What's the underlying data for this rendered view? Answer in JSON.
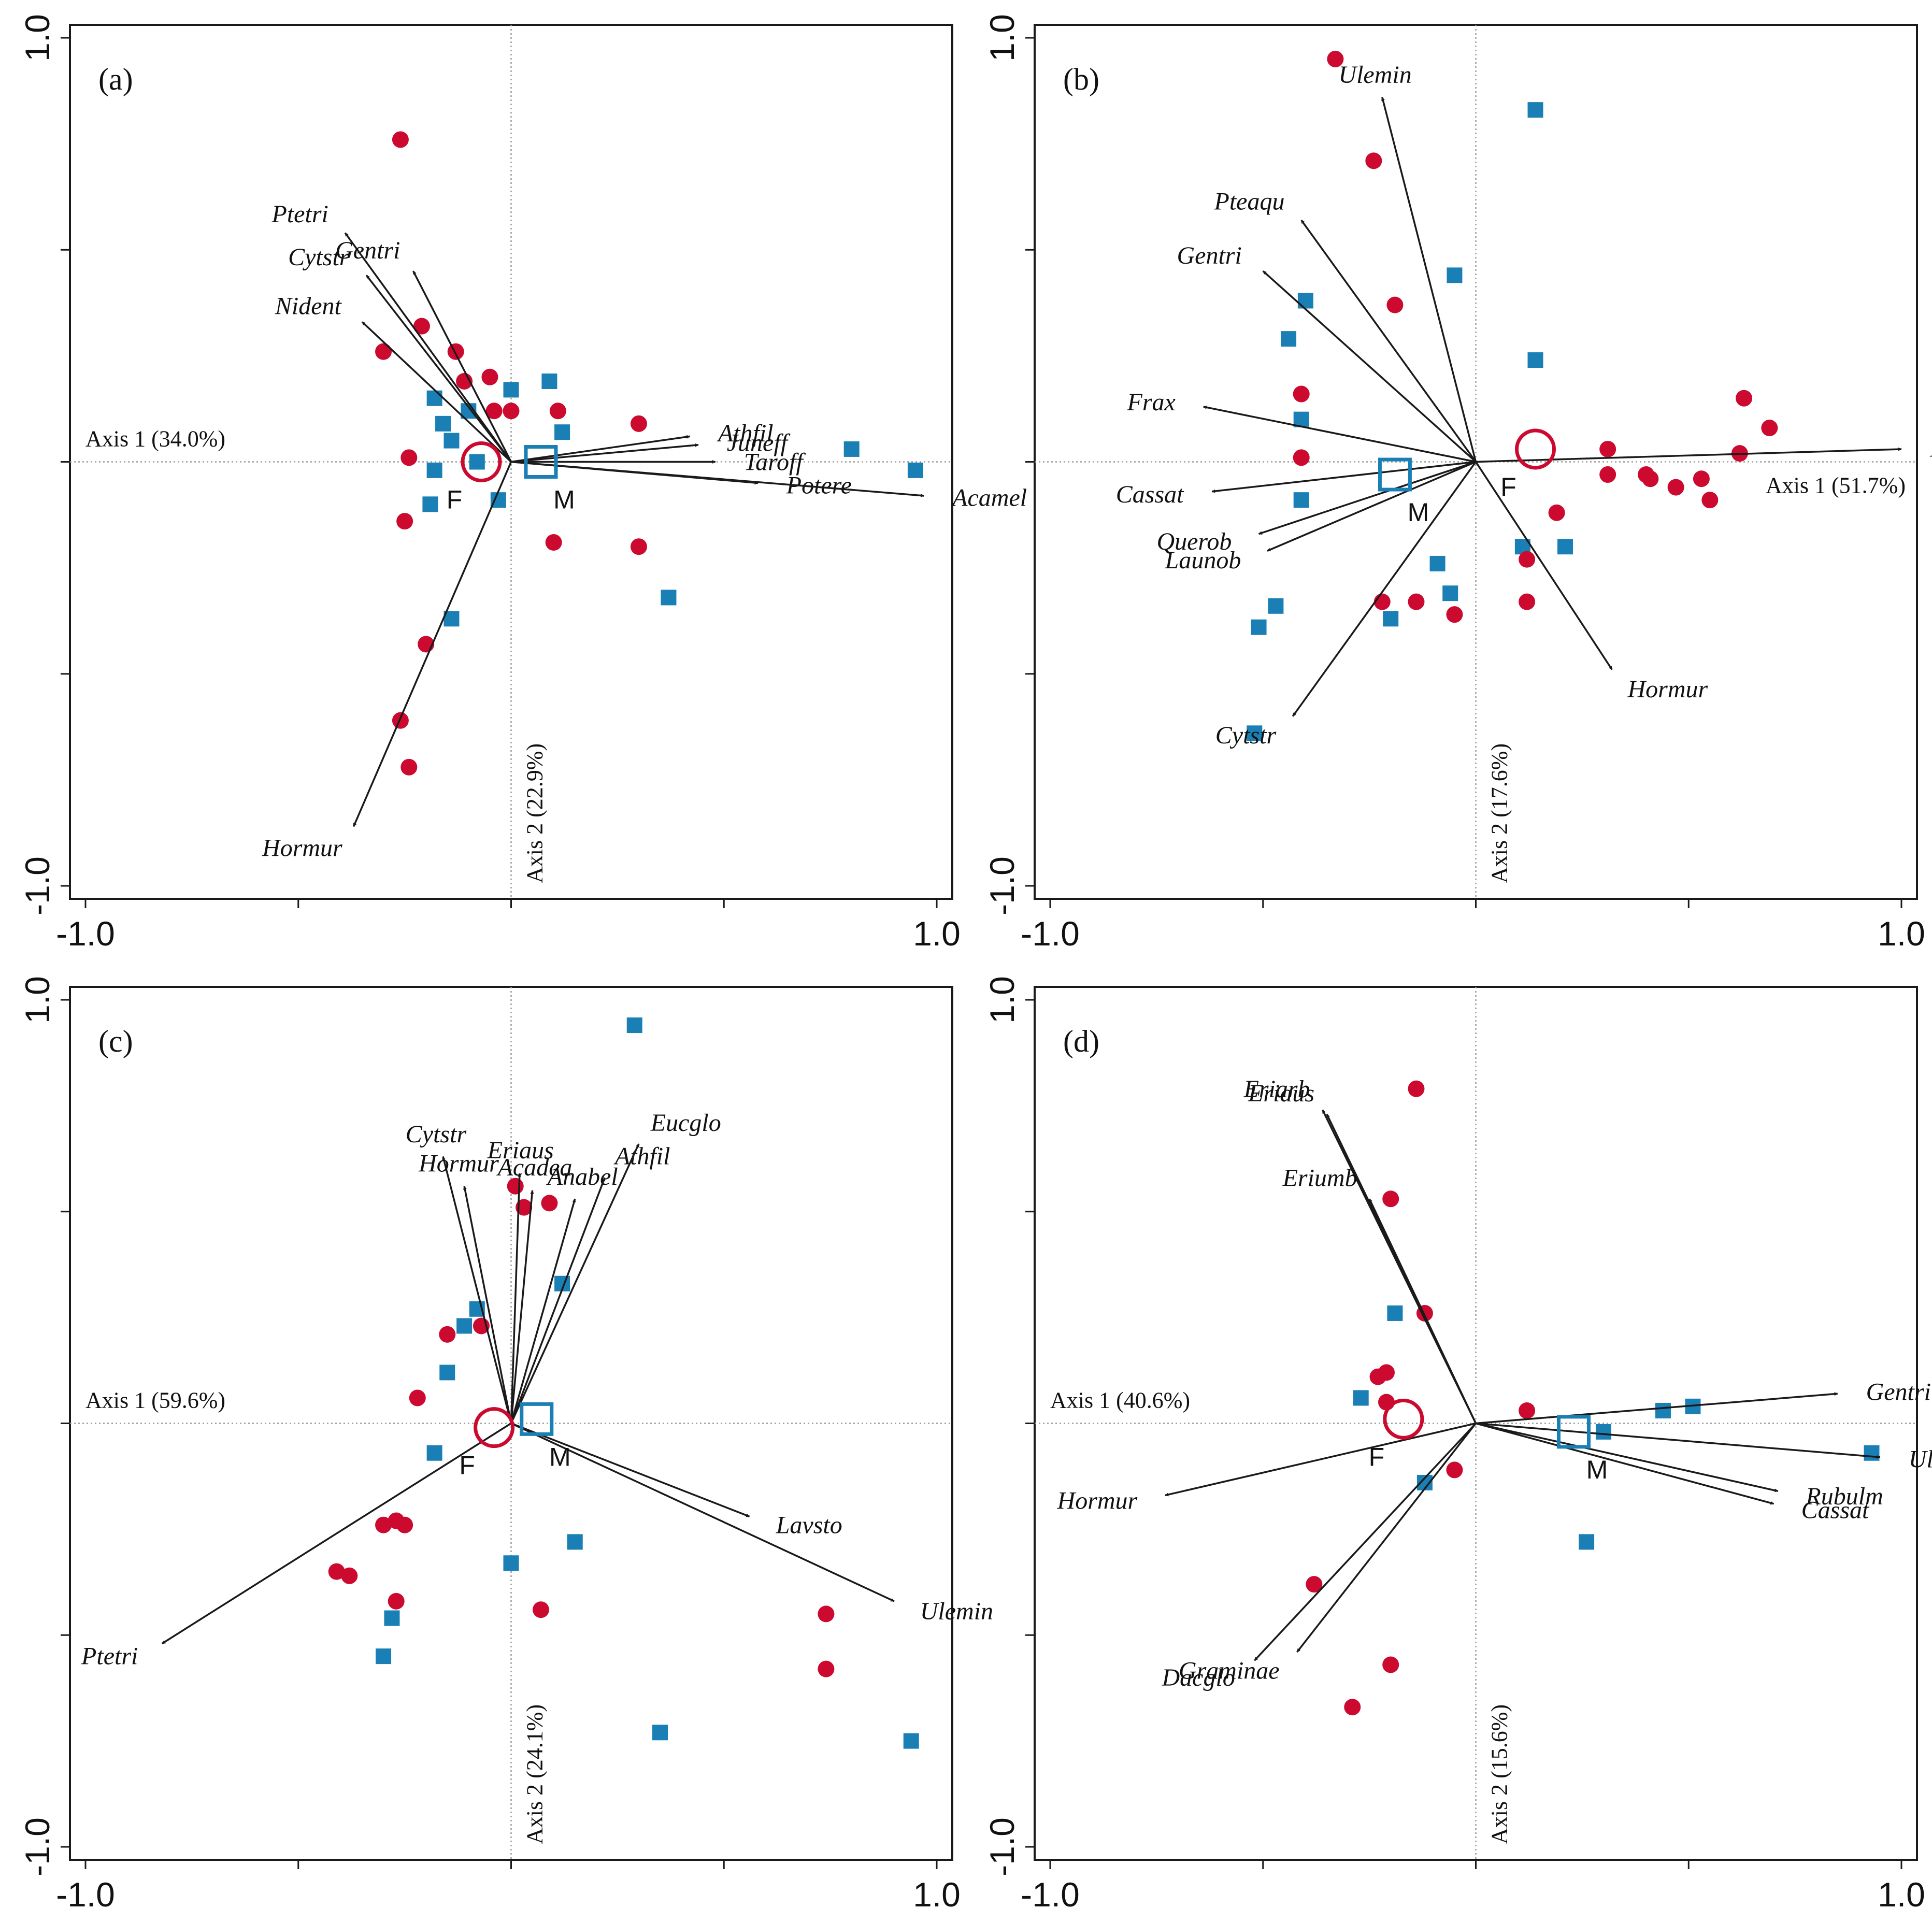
{
  "colors": {
    "female": "#cc0a2f",
    "male": "#1a7fb5",
    "arrow": "#1a1a1a",
    "frame": "#1a1a1a",
    "guide": "#9a9a9a"
  },
  "icons": {
    "female_site": "red-filled-circle",
    "male_site": "blue-filled-square",
    "female_centroid": "red-open-circle",
    "male_centroid": "blue-open-square"
  },
  "chart_data": [
    {
      "type": "scatter",
      "panel_label": "(a)",
      "xlim": [
        -1.0,
        1.0
      ],
      "ylim": [
        -1.0,
        1.0
      ],
      "x_tick_labels": [
        "-1.0",
        "1.0"
      ],
      "y_tick_labels": [
        "-1.0",
        "1.0"
      ],
      "axis1_label": "Axis 1 (34.0%)",
      "axis2_label": "Axis 2 (22.9%)",
      "vectors": [
        {
          "name": "Ptetri",
          "x": -0.39,
          "y": 0.54
        },
        {
          "name": "Gentri",
          "x": -0.23,
          "y": 0.45
        },
        {
          "name": "Cytstr",
          "x": -0.34,
          "y": 0.44
        },
        {
          "name": "Nident",
          "x": -0.35,
          "y": 0.33
        },
        {
          "name": "Athfil",
          "x": 0.42,
          "y": 0.06
        },
        {
          "name": "Juneff",
          "x": 0.44,
          "y": 0.04
        },
        {
          "name": "Taroff",
          "x": 0.48,
          "y": 0.0
        },
        {
          "name": "Potere",
          "x": 0.58,
          "y": -0.05
        },
        {
          "name": "Acamel",
          "x": 0.97,
          "y": -0.08
        },
        {
          "name": "Hormur",
          "x": -0.37,
          "y": -0.86
        }
      ],
      "centroids": [
        {
          "name": "F",
          "group": "female",
          "x": -0.07,
          "y": 0.0
        },
        {
          "name": "M",
          "group": "male",
          "x": 0.07,
          "y": 0.0
        }
      ],
      "female_points": [
        [
          -0.26,
          0.76
        ],
        [
          -0.21,
          0.32
        ],
        [
          -0.3,
          0.26
        ],
        [
          -0.13,
          0.26
        ],
        [
          -0.11,
          0.19
        ],
        [
          -0.05,
          0.2
        ],
        [
          -0.04,
          0.12
        ],
        [
          0.0,
          0.12
        ],
        [
          0.11,
          0.12
        ],
        [
          -0.24,
          0.01
        ],
        [
          -0.25,
          -0.14
        ],
        [
          0.1,
          -0.19
        ],
        [
          0.3,
          0.09
        ],
        [
          0.3,
          -0.2
        ],
        [
          -0.2,
          -0.43
        ],
        [
          -0.26,
          -0.61
        ],
        [
          -0.24,
          -0.72
        ]
      ],
      "male_points": [
        [
          -0.18,
          0.15
        ],
        [
          -0.16,
          0.09
        ],
        [
          -0.14,
          0.05
        ],
        [
          -0.1,
          0.12
        ],
        [
          -0.08,
          0.0
        ],
        [
          -0.18,
          -0.02
        ],
        [
          -0.19,
          -0.1
        ],
        [
          -0.03,
          -0.09
        ],
        [
          0.0,
          0.17
        ],
        [
          0.09,
          0.19
        ],
        [
          0.12,
          0.07
        ],
        [
          0.37,
          -0.32
        ],
        [
          -0.14,
          -0.37
        ],
        [
          0.8,
          0.03
        ],
        [
          0.95,
          -0.02
        ]
      ]
    },
    {
      "type": "scatter",
      "panel_label": "(b)",
      "xlim": [
        -1.0,
        1.0
      ],
      "ylim": [
        -1.0,
        1.0
      ],
      "x_tick_labels": [
        "-1.0",
        "1.0"
      ],
      "y_tick_labels": [
        "-1.0",
        "1.0"
      ],
      "axis1_label": "Axis 1 (51.7%)",
      "axis2_label": "Axis 2 (17.6%)",
      "vectors": [
        {
          "name": "Ulemin",
          "x": -0.22,
          "y": 0.86
        },
        {
          "name": "Pteaqu",
          "x": -0.41,
          "y": 0.57
        },
        {
          "name": "Gentri",
          "x": -0.5,
          "y": 0.45
        },
        {
          "name": "Frax",
          "x": -0.64,
          "y": 0.13
        },
        {
          "name": "Cassat",
          "x": -0.62,
          "y": -0.07
        },
        {
          "name": "Querob",
          "x": -0.51,
          "y": -0.17
        },
        {
          "name": "Launob",
          "x": -0.49,
          "y": -0.21
        },
        {
          "name": "Ptetri",
          "x": 1.0,
          "y": 0.03
        },
        {
          "name": "Hormur",
          "x": 0.32,
          "y": -0.49
        },
        {
          "name": "Cytstr",
          "x": -0.43,
          "y": -0.6
        }
      ],
      "centroids": [
        {
          "name": "F",
          "group": "female",
          "x": 0.14,
          "y": 0.03
        },
        {
          "name": "M",
          "group": "male",
          "x": -0.19,
          "y": -0.03
        }
      ],
      "female_points": [
        [
          -0.33,
          0.95
        ],
        [
          -0.24,
          0.71
        ],
        [
          -0.19,
          0.37
        ],
        [
          -0.41,
          0.16
        ],
        [
          -0.41,
          0.01
        ],
        [
          0.63,
          0.15
        ],
        [
          0.69,
          0.08
        ],
        [
          0.62,
          0.02
        ],
        [
          0.31,
          0.03
        ],
        [
          0.31,
          -0.03
        ],
        [
          0.4,
          -0.03
        ],
        [
          0.41,
          -0.04
        ],
        [
          0.47,
          -0.06
        ],
        [
          0.53,
          -0.04
        ],
        [
          0.55,
          -0.09
        ],
        [
          0.19,
          -0.12
        ],
        [
          0.12,
          -0.23
        ],
        [
          0.12,
          -0.33
        ],
        [
          -0.22,
          -0.33
        ],
        [
          -0.14,
          -0.33
        ],
        [
          -0.05,
          -0.36
        ]
      ],
      "male_points": [
        [
          0.14,
          0.83
        ],
        [
          -0.05,
          0.44
        ],
        [
          -0.4,
          0.38
        ],
        [
          -0.44,
          0.29
        ],
        [
          0.14,
          0.24
        ],
        [
          -0.41,
          0.1
        ],
        [
          -0.41,
          -0.09
        ],
        [
          0.11,
          -0.2
        ],
        [
          0.21,
          -0.2
        ],
        [
          -0.09,
          -0.24
        ],
        [
          -0.06,
          -0.31
        ],
        [
          -0.47,
          -0.34
        ],
        [
          -0.51,
          -0.39
        ],
        [
          -0.2,
          -0.37
        ],
        [
          -0.52,
          -0.64
        ]
      ]
    },
    {
      "type": "scatter",
      "panel_label": "(c)",
      "xlim": [
        -1.0,
        1.0
      ],
      "ylim": [
        -1.0,
        1.0
      ],
      "x_tick_labels": [
        "-1.0",
        "1.0"
      ],
      "y_tick_labels": [
        "-1.0",
        "1.0"
      ],
      "axis1_label": "Axis 1 (59.6%)",
      "axis2_label": "Axis 2 (24.1%)",
      "vectors": [
        {
          "name": "Cytstr",
          "x": -0.16,
          "y": 0.63
        },
        {
          "name": "Hormur",
          "x": -0.11,
          "y": 0.56
        },
        {
          "name": "Eriaus",
          "x": 0.02,
          "y": 0.59
        },
        {
          "name": "Acadea",
          "x": 0.05,
          "y": 0.55
        },
        {
          "name": "Anabel",
          "x": 0.15,
          "y": 0.53
        },
        {
          "name": "Athfil",
          "x": 0.22,
          "y": 0.58
        },
        {
          "name": "Eucglo",
          "x": 0.3,
          "y": 0.66
        },
        {
          "name": "Lavsto",
          "x": 0.56,
          "y": -0.22
        },
        {
          "name": "Ulemin",
          "x": 0.9,
          "y": -0.42
        },
        {
          "name": "Ptetri",
          "x": -0.82,
          "y": -0.52
        }
      ],
      "centroids": [
        {
          "name": "F",
          "group": "female",
          "x": -0.04,
          "y": -0.01
        },
        {
          "name": "M",
          "group": "male",
          "x": 0.06,
          "y": 0.01
        }
      ],
      "female_points": [
        [
          0.01,
          0.56
        ],
        [
          0.03,
          0.51
        ],
        [
          0.09,
          0.52
        ],
        [
          -0.07,
          0.23
        ],
        [
          -0.15,
          0.21
        ],
        [
          -0.22,
          0.06
        ],
        [
          -0.3,
          -0.24
        ],
        [
          -0.27,
          -0.23
        ],
        [
          -0.25,
          -0.24
        ],
        [
          -0.41,
          -0.35
        ],
        [
          -0.38,
          -0.36
        ],
        [
          -0.27,
          -0.42
        ],
        [
          0.07,
          -0.44
        ],
        [
          0.74,
          -0.45
        ],
        [
          0.74,
          -0.58
        ]
      ],
      "male_points": [
        [
          0.29,
          0.94
        ],
        [
          0.12,
          0.33
        ],
        [
          -0.08,
          0.27
        ],
        [
          -0.11,
          0.23
        ],
        [
          -0.15,
          0.12
        ],
        [
          -0.18,
          -0.07
        ],
        [
          0.0,
          -0.33
        ],
        [
          0.15,
          -0.28
        ],
        [
          -0.28,
          -0.46
        ],
        [
          -0.3,
          -0.55
        ],
        [
          0.35,
          -0.73
        ],
        [
          0.94,
          -0.75
        ]
      ]
    },
    {
      "type": "scatter",
      "panel_label": "(d)",
      "xlim": [
        -1.0,
        1.0
      ],
      "ylim": [
        -1.0,
        1.0
      ],
      "x_tick_labels": [
        "-1.0",
        "1.0"
      ],
      "y_tick_labels": [
        "-1.0",
        "1.0"
      ],
      "axis1_label": "Axis 1 (40.6%)",
      "axis2_label": "Axis 2 (15.6%)",
      "vectors": [
        {
          "name": "Eriarb",
          "x": -0.36,
          "y": 0.74
        },
        {
          "name": "Eriaus",
          "x": -0.35,
          "y": 0.73
        },
        {
          "name": "Eriumb",
          "x": -0.25,
          "y": 0.53
        },
        {
          "name": "Gentri",
          "x": 0.85,
          "y": 0.07
        },
        {
          "name": "Ulemin",
          "x": 0.95,
          "y": -0.08
        },
        {
          "name": "Rubulm",
          "x": 0.71,
          "y": -0.16
        },
        {
          "name": "Cassat",
          "x": 0.7,
          "y": -0.19
        },
        {
          "name": "Hormur",
          "x": -0.73,
          "y": -0.17
        },
        {
          "name": "Graminae",
          "x": -0.42,
          "y": -0.54
        },
        {
          "name": "Dacglo",
          "x": -0.52,
          "y": -0.56
        }
      ],
      "centroids": [
        {
          "name": "F",
          "group": "female",
          "x": -0.17,
          "y": 0.01
        },
        {
          "name": "M",
          "group": "male",
          "x": 0.23,
          "y": -0.02
        }
      ],
      "female_points": [
        [
          -0.14,
          0.79
        ],
        [
          -0.2,
          0.53
        ],
        [
          -0.12,
          0.26
        ],
        [
          -0.23,
          0.11
        ],
        [
          -0.21,
          0.12
        ],
        [
          -0.21,
          0.05
        ],
        [
          0.12,
          0.03
        ],
        [
          -0.05,
          -0.11
        ],
        [
          -0.38,
          -0.38
        ],
        [
          -0.2,
          -0.57
        ],
        [
          -0.29,
          -0.67
        ]
      ],
      "male_points": [
        [
          -0.19,
          0.26
        ],
        [
          -0.27,
          0.06
        ],
        [
          -0.12,
          -0.14
        ],
        [
          0.3,
          -0.02
        ],
        [
          0.44,
          0.03
        ],
        [
          0.51,
          0.04
        ],
        [
          0.26,
          -0.28
        ],
        [
          0.93,
          -0.07
        ]
      ]
    }
  ]
}
